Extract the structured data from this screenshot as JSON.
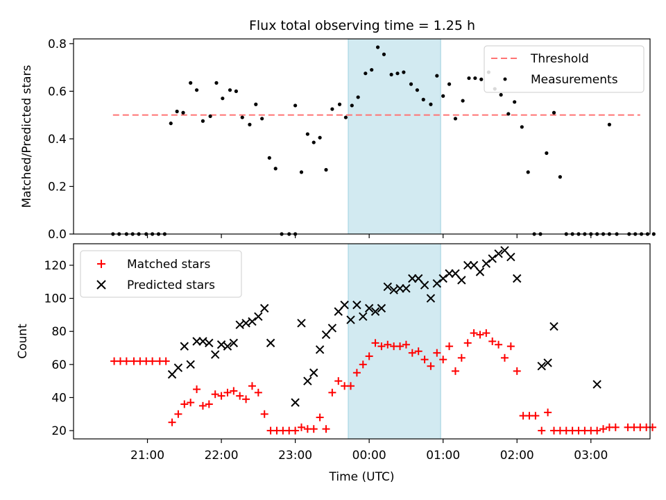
{
  "chart_data": [
    {
      "type": "scatter",
      "title": "Flux total observing time = 1.25 h",
      "xlabel": "",
      "ylabel": "Matched/Predicted stars",
      "ylim": [
        0,
        0.82
      ],
      "yticks": [
        0,
        0.2,
        0.4,
        0.6,
        0.8
      ],
      "ytick_labels": [
        "0.0",
        "0.2",
        "0.4",
        "0.6",
        "0.8"
      ],
      "xlim_hours": [
        -4.0,
        3.8
      ],
      "grid": false,
      "legend": "top-right",
      "shaded_span": {
        "from": "23:43",
        "to": "00:58",
        "color": "#add8e6"
      },
      "threshold": {
        "name": "Threshold",
        "y": 0.5,
        "x_from": "20:32",
        "x_to": "03:40",
        "color": "#ff7373"
      },
      "series": [
        {
          "name": "Measurements",
          "marker": "dot",
          "color": "#000000",
          "points": [
            [
              "20:32",
              0
            ],
            [
              "20:37",
              0
            ],
            [
              "20:43",
              0
            ],
            [
              "20:48",
              0
            ],
            [
              "20:53",
              0
            ],
            [
              "20:59",
              0
            ],
            [
              "21:04",
              0
            ],
            [
              "21:09",
              0
            ],
            [
              "21:14",
              0
            ],
            [
              "21:19",
              0.465
            ],
            [
              "21:24",
              0.515
            ],
            [
              "21:29",
              0.51
            ],
            [
              "21:35",
              0.635
            ],
            [
              "21:40",
              0.605
            ],
            [
              "21:45",
              0.475
            ],
            [
              "21:51",
              0.495
            ],
            [
              "21:56",
              0.635
            ],
            [
              "22:01",
              0.57
            ],
            [
              "22:07",
              0.605
            ],
            [
              "22:12",
              0.6
            ],
            [
              "22:17",
              0.49
            ],
            [
              "22:23",
              0.46
            ],
            [
              "22:28",
              0.545
            ],
            [
              "22:33",
              0.485
            ],
            [
              "22:39",
              0.32
            ],
            [
              "22:44",
              0.275
            ],
            [
              "22:49",
              0
            ],
            [
              "22:55",
              0
            ],
            [
              "23:00",
              0
            ],
            [
              "23:00",
              0.54
            ],
            [
              "23:05",
              0.26
            ],
            [
              "23:10",
              0.42
            ],
            [
              "23:15",
              0.385
            ],
            [
              "23:20",
              0.405
            ],
            [
              "23:25",
              0.27
            ],
            [
              "23:30",
              0.525
            ],
            [
              "23:36",
              0.545
            ],
            [
              "23:41",
              0.49
            ],
            [
              "23:46",
              0.54
            ],
            [
              "23:51",
              0.575
            ],
            [
              "23:57",
              0.675
            ],
            [
              "00:02",
              0.69
            ],
            [
              "00:07",
              0.785
            ],
            [
              "00:12",
              0.755
            ],
            [
              "00:18",
              0.67
            ],
            [
              "00:23",
              0.675
            ],
            [
              "00:28",
              0.68
            ],
            [
              "00:34",
              0.63
            ],
            [
              "00:39",
              0.605
            ],
            [
              "00:44",
              0.565
            ],
            [
              "00:50",
              0.545
            ],
            [
              "00:55",
              0.665
            ],
            [
              "01:00",
              0.58
            ],
            [
              "01:05",
              0.63
            ],
            [
              "01:10",
              0.485
            ],
            [
              "01:16",
              0.56
            ],
            [
              "01:21",
              0.655
            ],
            [
              "01:26",
              0.655
            ],
            [
              "01:31",
              0.65
            ],
            [
              "01:37",
              0.68
            ],
            [
              "01:42",
              0.61
            ],
            [
              "01:47",
              0.585
            ],
            [
              "01:53",
              0.505
            ],
            [
              "01:58",
              0.555
            ],
            [
              "02:04",
              0.45
            ],
            [
              "02:09",
              0.26
            ],
            [
              "02:14",
              0
            ],
            [
              "02:19",
              0
            ],
            [
              "02:24",
              0.34
            ],
            [
              "02:30",
              0.51
            ],
            [
              "02:35",
              0.24
            ],
            [
              "02:40",
              0
            ],
            [
              "02:45",
              0
            ],
            [
              "02:50",
              0
            ],
            [
              "02:55",
              0
            ],
            [
              "03:00",
              0
            ],
            [
              "03:05",
              0
            ],
            [
              "03:10",
              0
            ],
            [
              "03:15",
              0
            ],
            [
              "03:15",
              0.46
            ],
            [
              "03:21",
              0
            ],
            [
              "03:31",
              0
            ],
            [
              "03:36",
              0
            ],
            [
              "03:41",
              0
            ],
            [
              "03:46",
              0
            ],
            [
              "03:51",
              0
            ]
          ]
        }
      ]
    },
    {
      "type": "scatter",
      "title": "",
      "xlabel": "Time (UTC)",
      "ylabel": "Count",
      "ylim": [
        15,
        133
      ],
      "yticks": [
        20,
        40,
        60,
        80,
        100,
        120
      ],
      "ytick_labels": [
        "20",
        "40",
        "60",
        "80",
        "100",
        "120"
      ],
      "xticks_hours": [
        -3,
        -2,
        -1,
        0,
        1,
        2,
        3
      ],
      "xtick_labels": [
        "21:00",
        "22:00",
        "23:00",
        "00:00",
        "01:00",
        "02:00",
        "03:00"
      ],
      "xlim_hours": [
        -4.0,
        3.8
      ],
      "grid": false,
      "legend": "top-left",
      "shaded_span": {
        "from": "23:43",
        "to": "00:58",
        "color": "#add8e6"
      },
      "series": [
        {
          "name": "Matched stars",
          "marker": "plus",
          "color": "#ff0000",
          "points": [
            [
              "20:33",
              62
            ],
            [
              "20:38",
              62
            ],
            [
              "20:43",
              62
            ],
            [
              "20:49",
              62
            ],
            [
              "20:54",
              62
            ],
            [
              "20:59",
              62
            ],
            [
              "21:04",
              62
            ],
            [
              "21:10",
              62
            ],
            [
              "21:15",
              62
            ],
            [
              "21:20",
              25
            ],
            [
              "21:25",
              30
            ],
            [
              "21:30",
              36
            ],
            [
              "21:35",
              37
            ],
            [
              "21:40",
              45
            ],
            [
              "21:45",
              35
            ],
            [
              "21:50",
              36
            ],
            [
              "21:55",
              42
            ],
            [
              "22:00",
              41
            ],
            [
              "22:05",
              43
            ],
            [
              "22:10",
              44
            ],
            [
              "22:15",
              41
            ],
            [
              "22:20",
              39
            ],
            [
              "22:25",
              47
            ],
            [
              "22:30",
              43
            ],
            [
              "22:35",
              30
            ],
            [
              "22:40",
              20
            ],
            [
              "22:45",
              20
            ],
            [
              "22:50",
              20
            ],
            [
              "22:55",
              20
            ],
            [
              "23:00",
              20
            ],
            [
              "23:05",
              22
            ],
            [
              "23:10",
              21
            ],
            [
              "23:15",
              21
            ],
            [
              "23:20",
              28
            ],
            [
              "23:25",
              21
            ],
            [
              "23:30",
              43
            ],
            [
              "23:35",
              50
            ],
            [
              "23:40",
              47
            ],
            [
              "23:45",
              47
            ],
            [
              "23:50",
              55
            ],
            [
              "23:55",
              60
            ],
            [
              "00:00",
              65
            ],
            [
              "00:05",
              73
            ],
            [
              "00:10",
              71
            ],
            [
              "00:15",
              72
            ],
            [
              "00:20",
              71
            ],
            [
              "00:25",
              71
            ],
            [
              "00:30",
              72
            ],
            [
              "00:35",
              67
            ],
            [
              "00:40",
              68
            ],
            [
              "00:45",
              63
            ],
            [
              "00:50",
              59
            ],
            [
              "00:55",
              67
            ],
            [
              "01:00",
              63
            ],
            [
              "01:05",
              71
            ],
            [
              "01:10",
              56
            ],
            [
              "01:15",
              64
            ],
            [
              "01:20",
              73
            ],
            [
              "01:25",
              79
            ],
            [
              "01:30",
              78
            ],
            [
              "01:35",
              79
            ],
            [
              "01:40",
              74
            ],
            [
              "01:45",
              72
            ],
            [
              "01:50",
              64
            ],
            [
              "01:55",
              71
            ],
            [
              "02:00",
              56
            ],
            [
              "02:05",
              29
            ],
            [
              "02:10",
              29
            ],
            [
              "02:15",
              29
            ],
            [
              "02:20",
              20
            ],
            [
              "02:25",
              31
            ],
            [
              "02:30",
              20
            ],
            [
              "02:35",
              20
            ],
            [
              "02:40",
              20
            ],
            [
              "02:45",
              20
            ],
            [
              "02:50",
              20
            ],
            [
              "02:55",
              20
            ],
            [
              "03:00",
              20
            ],
            [
              "03:05",
              20
            ],
            [
              "03:10",
              21
            ],
            [
              "03:15",
              22
            ],
            [
              "03:20",
              22
            ],
            [
              "03:30",
              22
            ],
            [
              "03:35",
              22
            ],
            [
              "03:40",
              22
            ],
            [
              "03:45",
              22
            ],
            [
              "03:50",
              22
            ]
          ]
        },
        {
          "name": "Predicted stars",
          "marker": "x",
          "color": "#000000",
          "points": [
            [
              "21:20",
              54
            ],
            [
              "21:25",
              58
            ],
            [
              "21:30",
              71
            ],
            [
              "21:35",
              60
            ],
            [
              "21:40",
              74
            ],
            [
              "21:45",
              74
            ],
            [
              "21:50",
              73
            ],
            [
              "21:55",
              66
            ],
            [
              "22:00",
              72
            ],
            [
              "22:05",
              71
            ],
            [
              "22:10",
              73
            ],
            [
              "22:15",
              84
            ],
            [
              "22:20",
              85
            ],
            [
              "22:25",
              86
            ],
            [
              "22:30",
              89
            ],
            [
              "22:35",
              94
            ],
            [
              "22:40",
              73
            ],
            [
              "23:00",
              37
            ],
            [
              "23:05",
              85
            ],
            [
              "23:10",
              50
            ],
            [
              "23:15",
              55
            ],
            [
              "23:20",
              69
            ],
            [
              "23:25",
              78
            ],
            [
              "23:30",
              82
            ],
            [
              "23:35",
              92
            ],
            [
              "23:40",
              96
            ],
            [
              "23:45",
              87
            ],
            [
              "23:50",
              96
            ],
            [
              "23:55",
              89
            ],
            [
              "00:00",
              94
            ],
            [
              "00:05",
              92
            ],
            [
              "00:10",
              94
            ],
            [
              "00:15",
              107
            ],
            [
              "00:20",
              105
            ],
            [
              "00:25",
              106
            ],
            [
              "00:30",
              106
            ],
            [
              "00:35",
              112
            ],
            [
              "00:40",
              112
            ],
            [
              "00:45",
              108
            ],
            [
              "00:50",
              100
            ],
            [
              "00:55",
              109
            ],
            [
              "01:00",
              112
            ],
            [
              "01:05",
              115
            ],
            [
              "01:10",
              115
            ],
            [
              "01:15",
              111
            ],
            [
              "01:20",
              120
            ],
            [
              "01:25",
              120
            ],
            [
              "01:30",
              116
            ],
            [
              "01:35",
              121
            ],
            [
              "01:40",
              124
            ],
            [
              "01:45",
              127
            ],
            [
              "01:50",
              129
            ],
            [
              "01:55",
              125
            ],
            [
              "02:00",
              112
            ],
            [
              "02:20",
              59
            ],
            [
              "02:25",
              61
            ],
            [
              "02:30",
              83
            ],
            [
              "03:05",
              48
            ]
          ]
        }
      ]
    }
  ]
}
